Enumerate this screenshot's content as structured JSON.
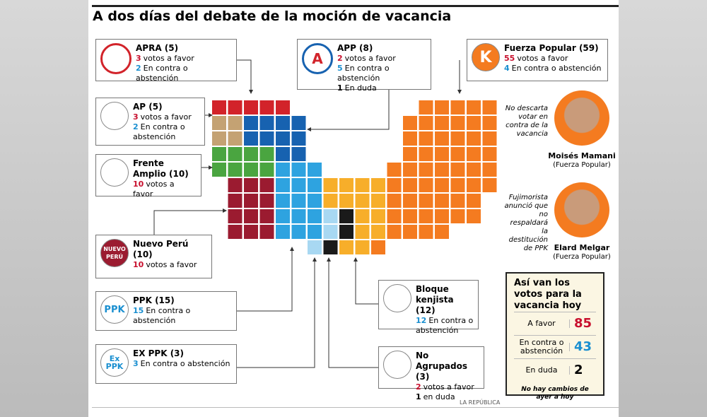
{
  "title": "A dos días del debate de la moción de vacancia",
  "parties": [
    {
      "name": "APRA (5)",
      "logo": "",
      "lines": [
        {
          "num": "3",
          "text": "votos a favor",
          "kind": "favor"
        },
        {
          "num": "2",
          "text": "En contra o abstención",
          "kind": "contra"
        }
      ]
    },
    {
      "name": "APP (8)",
      "logo": "A",
      "lines": [
        {
          "num": "2",
          "text": "votos a favor",
          "kind": "favor"
        },
        {
          "num": "5",
          "text": "En contra o abstención",
          "kind": "contra"
        },
        {
          "num": "1",
          "text": "En duda",
          "kind": "duda"
        }
      ]
    },
    {
      "name": "Fuerza Popular (59)",
      "logo": "K",
      "lines": [
        {
          "num": "55",
          "text": "votos a favor",
          "kind": "favor"
        },
        {
          "num": "4",
          "text": "En contra o abstención",
          "kind": "contra"
        }
      ]
    },
    {
      "name": "AP (5)",
      "logo": "",
      "lines": [
        {
          "num": "3",
          "text": "votos a favor",
          "kind": "favor"
        },
        {
          "num": "2",
          "text": "En contra o abstención",
          "kind": "contra"
        }
      ]
    },
    {
      "name": "Frente Amplio (10)",
      "logo": "",
      "lines": [
        {
          "num": "10",
          "text": "votos a favor",
          "kind": "favor"
        }
      ]
    },
    {
      "name": "Nuevo Perú (10)",
      "logo": "NUEVO PERÚ",
      "lines": [
        {
          "num": "10",
          "text": "votos a favor",
          "kind": "favor"
        }
      ]
    },
    {
      "name": "PPK (15)",
      "logo": "PPK",
      "lines": [
        {
          "num": "15",
          "text": "En contra o abstención",
          "kind": "contra"
        }
      ]
    },
    {
      "name": "EX PPK (3)",
      "logo": "Ex PPK",
      "lines": [
        {
          "num": "3",
          "text": "En contra o abstención",
          "kind": "contra"
        }
      ]
    },
    {
      "name": "Bloque kenjista (12)",
      "logo": "",
      "lines": [
        {
          "num": "12",
          "text": "En contra o abstención",
          "kind": "contra"
        }
      ]
    },
    {
      "name": "No Agrupados (3)",
      "logo": "",
      "lines": [
        {
          "num": "2",
          "text": "votos a favor",
          "kind": "favor"
        },
        {
          "num": "1",
          "text": "en duda",
          "kind": "duda"
        }
      ]
    }
  ],
  "politicians": [
    {
      "note": "No descarta votar en contra de la vacancia",
      "name": "Moisés Mamani",
      "party": "(Fuerza Popular)"
    },
    {
      "note": "Fujimorista anunció que no respaldará la destitución de PPK",
      "name": "Elard Melgar",
      "party": "(Fuerza Popular)"
    }
  ],
  "summary": {
    "title": "Así van los votos para la vacancia hoy",
    "rows": [
      {
        "label": "A favor",
        "value": 85,
        "kind": "favor"
      },
      {
        "label": "En contra o abstención",
        "value": 43,
        "kind": "contra"
      },
      {
        "label": "En duda",
        "value": 2,
        "kind": "duda"
      }
    ],
    "note": "No hay cambios de ayer a hoy"
  },
  "credit": "LA REPÚBLICA"
}
